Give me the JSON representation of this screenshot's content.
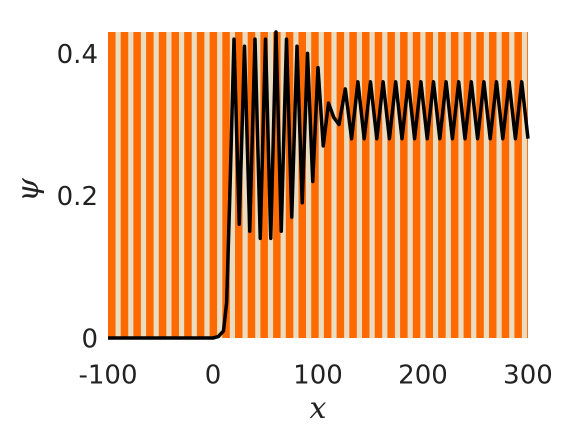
{
  "chart_data": {
    "type": "line",
    "color": "#000000",
    "xlabel": "x",
    "ylabel": "ψ",
    "x": [
      -100,
      -50,
      0,
      5,
      10,
      13,
      16,
      20,
      25,
      30,
      35,
      40,
      45,
      50,
      55,
      60,
      65,
      70,
      75,
      80,
      85,
      90,
      95,
      100,
      105,
      110,
      115,
      120,
      126,
      132,
      138,
      144,
      150,
      156,
      162,
      168,
      174,
      180,
      186,
      192,
      198,
      204,
      210,
      216,
      222,
      228,
      234,
      240,
      246,
      252,
      258,
      264,
      270,
      276,
      282,
      288,
      294,
      300
    ],
    "values": [
      0,
      0,
      0,
      0.002,
      0.01,
      0.05,
      0.2,
      0.42,
      0.16,
      0.41,
      0.15,
      0.42,
      0.14,
      0.42,
      0.14,
      0.43,
      0.15,
      0.42,
      0.17,
      0.41,
      0.19,
      0.4,
      0.22,
      0.38,
      0.27,
      0.33,
      0.31,
      0.3,
      0.35,
      0.28,
      0.36,
      0.28,
      0.36,
      0.28,
      0.36,
      0.28,
      0.36,
      0.28,
      0.36,
      0.28,
      0.36,
      0.28,
      0.36,
      0.28,
      0.36,
      0.28,
      0.36,
      0.28,
      0.36,
      0.28,
      0.36,
      0.28,
      0.36,
      0.28,
      0.36,
      0.28,
      0.36,
      0.28
    ],
    "xlim": [
      -100,
      300
    ],
    "xticks": [
      -100,
      0,
      100,
      200,
      300
    ],
    "ylim": [
      0,
      0.43
    ],
    "yticks": [
      0,
      0.2,
      0.4
    ]
  }
}
